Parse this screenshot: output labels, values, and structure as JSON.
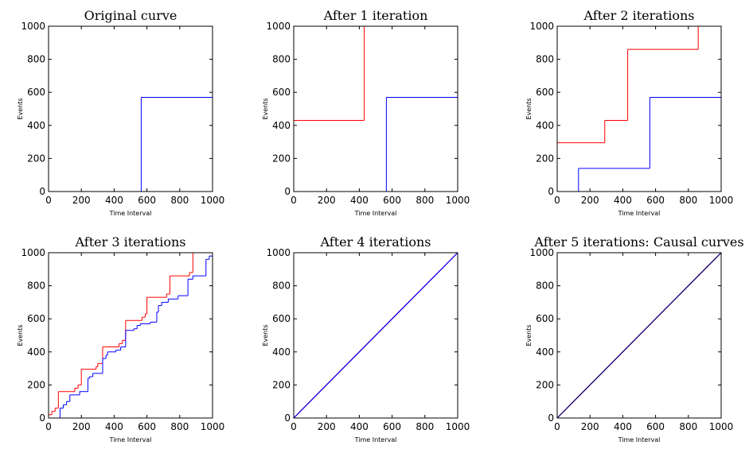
{
  "chart_data": [
    {
      "type": "step",
      "title": "Original curve",
      "xlabel": "Time Interval",
      "ylabel": "Events",
      "xlim": [
        0,
        1000
      ],
      "ylim": [
        0,
        1000
      ],
      "xticks": [
        0,
        200,
        400,
        600,
        800,
        1000
      ],
      "yticks": [
        0,
        200,
        400,
        600,
        800,
        1000
      ],
      "series": [
        {
          "color": "#ff0000",
          "x": [
            0,
            1000
          ],
          "values": [
            1000,
            1000
          ]
        },
        {
          "color": "#0000ff",
          "x": [
            0,
            565,
            1000
          ],
          "values": [
            0,
            570,
            570
          ]
        }
      ]
    },
    {
      "type": "step",
      "title": "After 1 iteration",
      "xlabel": "Time Interval",
      "ylabel": "Events",
      "xlim": [
        0,
        1000
      ],
      "ylim": [
        0,
        1000
      ],
      "xticks": [
        0,
        200,
        400,
        600,
        800,
        1000
      ],
      "yticks": [
        0,
        200,
        400,
        600,
        800,
        1000
      ],
      "series": [
        {
          "color": "#ff0000",
          "x": [
            0,
            430,
            1000
          ],
          "values": [
            430,
            1000,
            1000
          ]
        },
        {
          "color": "#0000ff",
          "x": [
            0,
            565,
            1000
          ],
          "values": [
            0,
            570,
            570
          ]
        }
      ]
    },
    {
      "type": "step",
      "title": "After 2 iterations",
      "xlabel": "Time Interval",
      "ylabel": "Events",
      "xlim": [
        0,
        1000
      ],
      "ylim": [
        0,
        1000
      ],
      "xticks": [
        0,
        200,
        400,
        600,
        800,
        1000
      ],
      "yticks": [
        0,
        200,
        400,
        600,
        800,
        1000
      ],
      "series": [
        {
          "color": "#ff0000",
          "x": [
            0,
            290,
            430,
            860,
            1000
          ],
          "values": [
            295,
            430,
            860,
            1000,
            1000
          ]
        },
        {
          "color": "#0000ff",
          "x": [
            0,
            130,
            565,
            1000
          ],
          "values": [
            0,
            140,
            570,
            570
          ]
        }
      ]
    },
    {
      "type": "step",
      "title": "After 3 iterations",
      "xlabel": "Time Interval",
      "ylabel": "Events",
      "xlim": [
        0,
        1000
      ],
      "ylim": [
        0,
        1000
      ],
      "xticks": [
        0,
        200,
        400,
        600,
        800,
        1000
      ],
      "yticks": [
        0,
        200,
        400,
        600,
        800,
        1000
      ],
      "series": [
        {
          "color": "#ff0000",
          "x": [
            0,
            20,
            40,
            60,
            160,
            180,
            200,
            290,
            300,
            330,
            430,
            450,
            470,
            570,
            590,
            600,
            720,
            740,
            860,
            880,
            1000
          ],
          "values": [
            20,
            40,
            60,
            160,
            180,
            200,
            295,
            310,
            330,
            430,
            450,
            470,
            590,
            610,
            630,
            730,
            750,
            860,
            880,
            1000,
            1000
          ]
        },
        {
          "color": "#0000ff",
          "x": [
            0,
            70,
            90,
            110,
            130,
            190,
            240,
            250,
            270,
            330,
            350,
            360,
            410,
            440,
            470,
            520,
            540,
            560,
            620,
            660,
            670,
            690,
            730,
            790,
            850,
            880,
            960,
            980,
            1000
          ],
          "values": [
            0,
            60,
            80,
            100,
            140,
            160,
            240,
            250,
            270,
            360,
            380,
            400,
            410,
            430,
            530,
            540,
            560,
            570,
            580,
            640,
            680,
            700,
            720,
            740,
            840,
            860,
            960,
            980,
            980
          ]
        }
      ]
    },
    {
      "type": "line",
      "title": "After 4 iterations",
      "xlabel": "Time Interval",
      "ylabel": "Events",
      "xlim": [
        0,
        1000
      ],
      "ylim": [
        0,
        1000
      ],
      "xticks": [
        0,
        200,
        400,
        600,
        800,
        1000
      ],
      "yticks": [
        0,
        200,
        400,
        600,
        800,
        1000
      ],
      "series": [
        {
          "color": "#ff0000",
          "x": [
            0,
            1000
          ],
          "values": [
            0,
            1000
          ]
        },
        {
          "color": "#0000ff",
          "x": [
            0,
            1000
          ],
          "values": [
            0,
            1000
          ]
        }
      ]
    },
    {
      "type": "line",
      "title": "After 5 iterations: Causal curves",
      "xlabel": "Time Interval",
      "ylabel": "Events",
      "xlim": [
        0,
        1000
      ],
      "ylim": [
        0,
        1000
      ],
      "xticks": [
        0,
        200,
        400,
        600,
        800,
        1000
      ],
      "yticks": [
        0,
        200,
        400,
        600,
        800,
        1000
      ],
      "series": [
        {
          "color": "#ff0000",
          "x": [
            0,
            1000
          ],
          "values": [
            0,
            1000
          ]
        },
        {
          "color": "#000080",
          "x": [
            0,
            1000
          ],
          "values": [
            0,
            1000
          ]
        }
      ]
    }
  ]
}
